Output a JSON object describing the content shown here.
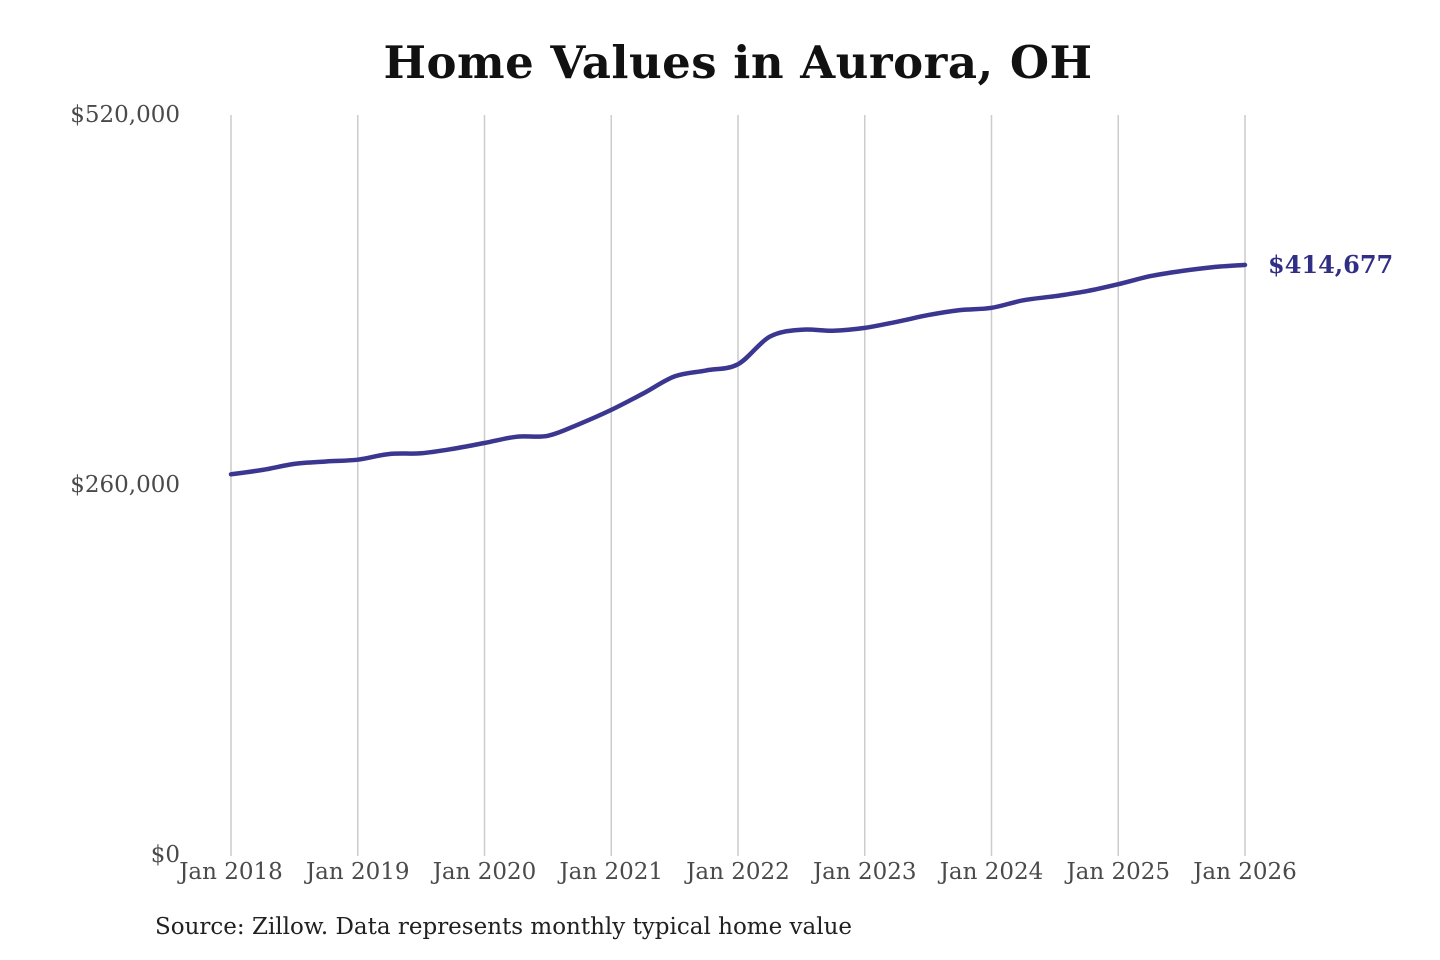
{
  "title": "Home Values in Aurora, OH",
  "source_note": "Source: Zillow. Data represents monthly typical home value",
  "colors": {
    "line": "#3b3790",
    "annotation": "#312e85",
    "grid": "#cccccc",
    "tick_text": "#4a4a4a",
    "title_text": "#111111",
    "source_text": "#212121"
  },
  "chart_data": {
    "type": "line",
    "title": "Home Values in Aurora, OH",
    "xlabel": "",
    "ylabel": "",
    "ylim": [
      0,
      520000
    ],
    "grid": "vertical-only",
    "legend": "none",
    "x_tick_labels": [
      "Jan 2018",
      "Jan 2019",
      "Jan 2020",
      "Jan 2021",
      "Jan 2022",
      "Jan 2023",
      "Jan 2024",
      "Jan 2025",
      "Jan 2026"
    ],
    "y_ticks": [
      {
        "label": "$0",
        "value": 0
      },
      {
        "label": "$260,000",
        "value": 260000
      },
      {
        "label": "$520,000",
        "value": 520000
      }
    ],
    "end_label": "$414,677",
    "end_value": 414677,
    "series": [
      {
        "name": "Monthly typical home value",
        "points": [
          {
            "x": "Jan 2018",
            "y": 267500
          },
          {
            "x": "Apr 2018",
            "y": 270600
          },
          {
            "x": "Jul 2018",
            "y": 274800
          },
          {
            "x": "Oct 2018",
            "y": 276500
          },
          {
            "x": "Jan 2019",
            "y": 277800
          },
          {
            "x": "Apr 2019",
            "y": 281800
          },
          {
            "x": "Jul 2019",
            "y": 282300
          },
          {
            "x": "Oct 2019",
            "y": 285400
          },
          {
            "x": "Jan 2020",
            "y": 289500
          },
          {
            "x": "Apr 2020",
            "y": 293900
          },
          {
            "x": "Jul 2020",
            "y": 294600
          },
          {
            "x": "Oct 2020",
            "y": 302900
          },
          {
            "x": "Jan 2021",
            "y": 312800
          },
          {
            "x": "Apr 2021",
            "y": 324200
          },
          {
            "x": "Jul 2021",
            "y": 336300
          },
          {
            "x": "Oct 2021",
            "y": 340500
          },
          {
            "x": "Jan 2022",
            "y": 344900
          },
          {
            "x": "Apr 2022",
            "y": 364200
          },
          {
            "x": "Jul 2022",
            "y": 369100
          },
          {
            "x": "Oct 2022",
            "y": 368400
          },
          {
            "x": "Jan 2023",
            "y": 370400
          },
          {
            "x": "Apr 2023",
            "y": 374600
          },
          {
            "x": "Jul 2023",
            "y": 379400
          },
          {
            "x": "Oct 2023",
            "y": 382900
          },
          {
            "x": "Jan 2024",
            "y": 384500
          },
          {
            "x": "Apr 2024",
            "y": 389800
          },
          {
            "x": "Jul 2024",
            "y": 392700
          },
          {
            "x": "Oct 2024",
            "y": 396200
          },
          {
            "x": "Jan 2025",
            "y": 401100
          },
          {
            "x": "Apr 2025",
            "y": 406700
          },
          {
            "x": "Jul 2025",
            "y": 410400
          },
          {
            "x": "Oct 2025",
            "y": 413100
          },
          {
            "x": "Jan 2026",
            "y": 414677
          }
        ]
      }
    ]
  }
}
